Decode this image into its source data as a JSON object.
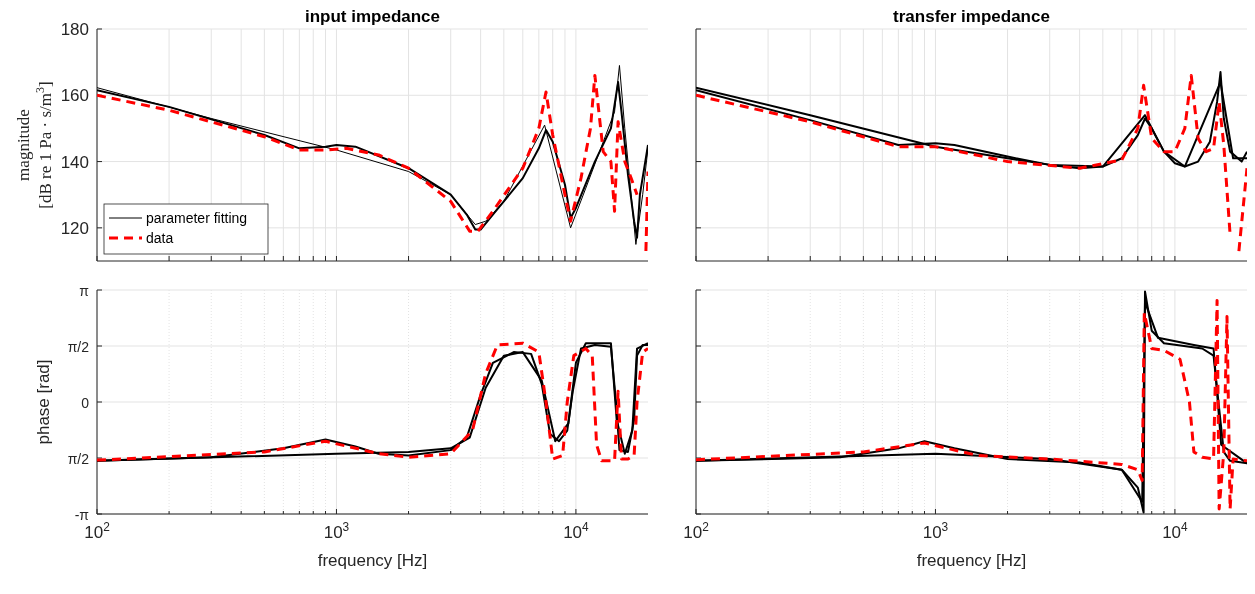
{
  "chart_data": [
    {
      "type": "line",
      "title": "input impedance",
      "ylabel": "magnitude\n[dB re 1 Pa · s/m$^{3}$]",
      "log": "x",
      "grid": true,
      "legend": "bottom left",
      "tick_labels": "y",
      "xlim": [
        100,
        20000
      ],
      "ylim": [
        110,
        180
      ],
      "xticks": [
        100,
        200,
        300,
        400,
        500,
        600,
        700,
        800,
        900,
        1000,
        2000,
        3000,
        4000,
        5000,
        6000,
        7000,
        8000,
        9000,
        10000
      ],
      "yticks": [
        120,
        140,
        160,
        180
      ],
      "series": [
        {
          "name": "parameter fitting",
          "color": "#000000",
          "line_style": "solid",
          "x": [
            100,
            300,
            1000,
            2000,
            3000,
            3800,
            4200,
            5000,
            7400,
            9500,
            11000,
            14500,
            15200,
            16000,
            17800,
            19000,
            20000
          ],
          "values": [
            162.3,
            153,
            143.5,
            137,
            130,
            121,
            122,
            128,
            151,
            120,
            132,
            155,
            169,
            150,
            115,
            130,
            144
          ]
        },
        {
          "color": "#000000",
          "line_style": "solid",
          "x": [
            100,
            200,
            500,
            700,
            900,
            1000,
            1200,
            2000,
            3000,
            3500,
            3800,
            4000,
            4500,
            5000,
            6000,
            7000,
            7500,
            8000,
            9000,
            9500,
            10000,
            12000,
            14000,
            15000,
            15500,
            16500,
            17500,
            18000,
            18500,
            20000
          ],
          "values": [
            161.5,
            156.5,
            148,
            144,
            144.5,
            145,
            144.5,
            138,
            130,
            124,
            119.5,
            119.5,
            124,
            128,
            135,
            144,
            149.5,
            146,
            133,
            123,
            126,
            140,
            150,
            164,
            155,
            136,
            122,
            117,
            130,
            145
          ]
        },
        {
          "name": "data",
          "color": "#ff0000",
          "line_style": "dashed",
          "x": [
            100,
            200,
            500,
            700,
            900,
            1100,
            1500,
            2000,
            3000,
            3600,
            3900,
            4500,
            6000,
            7000,
            7500,
            8000,
            9000,
            9500,
            10500,
            11500,
            12000,
            13000,
            14000,
            14500,
            15000,
            16000,
            17000,
            18000,
            18800,
            19600,
            20000
          ],
          "values": [
            160,
            155.5,
            147.5,
            143.5,
            143.5,
            144,
            142,
            138,
            128,
            119,
            119,
            125,
            138,
            150,
            161,
            148,
            130,
            122,
            135,
            150,
            166,
            143,
            140,
            125,
            152,
            140,
            135,
            130,
            null,
            113,
            137
          ]
        }
      ]
    },
    {
      "type": "line",
      "title": "transfer impedance",
      "log": "x",
      "grid": true,
      "tick_labels": false,
      "xlim": [
        100,
        20000
      ],
      "ylim": [
        110,
        180
      ],
      "xticks": [
        100,
        200,
        300,
        400,
        500,
        600,
        700,
        800,
        900,
        1000,
        2000,
        3000,
        4000,
        5000,
        6000,
        7000,
        8000,
        9000,
        10000
      ],
      "yticks": [
        120,
        140,
        160,
        180
      ],
      "series": [
        {
          "color": "#000000",
          "line_style": "solid",
          "x": [
            100,
            300,
            1000,
            2000,
            3000,
            5000,
            7500,
            9000,
            11000,
            15500,
            17500,
            20000
          ],
          "values": [
            162.3,
            154,
            144.5,
            141,
            139,
            138.5,
            154,
            143,
            138.5,
            164,
            141,
            141
          ]
        },
        {
          "color": "#000000",
          "line_style": "solid",
          "x": [
            100,
            300,
            700,
            1000,
            1200,
            2000,
            3000,
            4000,
            5000,
            6000,
            7000,
            7500,
            8000,
            9000,
            10000,
            11000,
            12500,
            14000,
            15000,
            15500,
            16000,
            17000,
            19000,
            20000
          ],
          "values": [
            161.5,
            152.5,
            145,
            145.5,
            145,
            141.5,
            139,
            138,
            138.5,
            141,
            148,
            153,
            150,
            143,
            139.5,
            138.5,
            140,
            146,
            158,
            167,
            153,
            143,
            140,
            143
          ]
        },
        {
          "color": "#ff0000",
          "line_style": "dashed",
          "x": [
            100,
            300,
            700,
            1000,
            2000,
            4000,
            6000,
            7000,
            7400,
            8000,
            9000,
            10000,
            11000,
            11700,
            12500,
            13500,
            14500,
            15300,
            16000,
            17000,
            17500,
            18500,
            20000
          ],
          "values": [
            160,
            152,
            144.5,
            144.5,
            140,
            138,
            140.5,
            150,
            163,
            147,
            143,
            143,
            150,
            166,
            147,
            143,
            144,
            158,
            145,
            118,
            null,
            113,
            138
          ]
        }
      ]
    },
    {
      "type": "line",
      "ylabel": "phase [rad]",
      "xlabel": "frequency [Hz]",
      "log": "x",
      "grid": true,
      "xlim": [
        100,
        20000
      ],
      "ylim": [
        -3.1416,
        3.1416
      ],
      "xticks": [
        {
          "value": 100,
          "label": "10$^{2}$"
        },
        {
          "value": 200,
          "label": null
        },
        {
          "value": 300,
          "label": null
        },
        {
          "value": 400,
          "label": null
        },
        {
          "value": 500,
          "label": null
        },
        {
          "value": 600,
          "label": null
        },
        {
          "value": 700,
          "label": null
        },
        {
          "value": 800,
          "label": null
        },
        {
          "value": 900,
          "label": null
        },
        {
          "value": 1000,
          "label": "10$^{3}$"
        },
        {
          "value": 2000,
          "label": null
        },
        {
          "value": 3000,
          "label": null
        },
        {
          "value": 4000,
          "label": null
        },
        {
          "value": 5000,
          "label": null
        },
        {
          "value": 6000,
          "label": null
        },
        {
          "value": 7000,
          "label": null
        },
        {
          "value": 8000,
          "label": null
        },
        {
          "value": 9000,
          "label": null
        },
        {
          "value": 10000,
          "label": "10$^{4}$"
        }
      ],
      "yticks": [
        {
          "value": -3.1416,
          "label": "-π"
        },
        {
          "value": -1.5708,
          "label": "π/2"
        },
        0,
        {
          "value": 1.5708,
          "label": "π/2"
        },
        {
          "value": 3.1416,
          "label": "π"
        }
      ],
      "series": [
        {
          "color": "#000000",
          "line_style": "solid",
          "x": [
            100,
            1000,
            2000,
            3000,
            3600,
            4200,
            5000,
            6000,
            7200,
            8200,
            9300,
            10000,
            11000,
            14000,
            14800,
            16000,
            17200,
            18000,
            20000
          ],
          "values": [
            -1.65,
            -1.45,
            -1.4,
            -1.3,
            -1.0,
            0.4,
            1.3,
            1.4,
            0.6,
            -1.1,
            -0.6,
            1.1,
            1.65,
            1.65,
            -0.5,
            -1.45,
            -0.8,
            1.5,
            1.65
          ]
        },
        {
          "color": "#000000",
          "line_style": "solid",
          "x": [
            100,
            300,
            600,
            900,
            1200,
            1500,
            2000,
            3000,
            3500,
            4000,
            4500,
            5500,
            6500,
            7200,
            7800,
            8500,
            9200,
            9700,
            10500,
            12000,
            14000,
            14700,
            15200,
            16500,
            17500,
            18000,
            19000,
            20000
          ],
          "values": [
            -1.65,
            -1.55,
            -1.3,
            -1.05,
            -1.25,
            -1.45,
            -1.5,
            -1.35,
            -1.0,
            0.2,
            1.1,
            1.4,
            1.35,
            0.5,
            -0.9,
            -1.1,
            -0.8,
            0.3,
            1.5,
            1.6,
            1.55,
            0,
            -1.35,
            -1.4,
            -0.5,
            1.3,
            1.6,
            1.6
          ]
        },
        {
          "color": "#ff0000",
          "line_style": "dashed",
          "x": [
            100,
            500,
            900,
            1500,
            2000,
            3000,
            3700,
            4200,
            4700,
            6000,
            7000,
            7500,
            8000,
            8800,
            9200,
            9800,
            11000,
            11700,
            12200,
            12800,
            14500,
            15000,
            15500,
            16500,
            17500,
            18000,
            19000,
            20000
          ],
          "values": [
            -1.63,
            -1.4,
            -1.1,
            -1.45,
            -1.55,
            -1.45,
            -0.8,
            0.8,
            1.6,
            1.65,
            1.4,
            0,
            -1.6,
            -1.5,
            0,
            1.3,
            1.5,
            1.3,
            -1.2,
            -1.65,
            -1.65,
            0.3,
            -1.6,
            -1.6,
            -1.5,
            0,
            1.4,
            1.5
          ]
        }
      ]
    },
    {
      "type": "line",
      "xlabel": "frequency [Hz]",
      "log": "x",
      "grid": true,
      "tick_labels": "x",
      "xlim": [
        100,
        20000
      ],
      "ylim": [
        -3.1416,
        3.1416
      ],
      "xticks": [
        {
          "value": 100,
          "label": "10$^{2}$"
        },
        {
          "value": 200,
          "label": null
        },
        {
          "value": 300,
          "label": null
        },
        {
          "value": 400,
          "label": null
        },
        {
          "value": 500,
          "label": null
        },
        {
          "value": 600,
          "label": null
        },
        {
          "value": 700,
          "label": null
        },
        {
          "value": 800,
          "label": null
        },
        {
          "value": 900,
          "label": null
        },
        {
          "value": 1000,
          "label": "10$^{3}$"
        },
        {
          "value": 2000,
          "label": null
        },
        {
          "value": 3000,
          "label": null
        },
        {
          "value": 4000,
          "label": null
        },
        {
          "value": 5000,
          "label": null
        },
        {
          "value": 6000,
          "label": null
        },
        {
          "value": 7000,
          "label": null
        },
        {
          "value": 8000,
          "label": null
        },
        {
          "value": 9000,
          "label": null
        },
        {
          "value": 10000,
          "label": "10$^{4}$"
        }
      ],
      "yticks": [
        -3.1416,
        -1.5708,
        0,
        1.5708,
        3.1416
      ],
      "series": [
        {
          "color": "#000000",
          "line_style": "solid",
          "x": [
            100,
            1000,
            3000,
            6000,
            7300,
            7500,
            8500,
            12000,
            14500,
            15600,
            20000
          ],
          "values": [
            -1.65,
            -1.45,
            -1.6,
            -1.9,
            -2.8,
            2.8,
            1.8,
            1.6,
            1.5,
            -1.2,
            -1.72
          ]
        },
        {
          "color": "#000000",
          "line_style": "solid",
          "x": [
            100,
            400,
            700,
            900,
            1200,
            2000,
            4000,
            6000,
            7000,
            7400,
            7500,
            8000,
            9000,
            13000,
            14500,
            15200,
            16000,
            17000,
            20000
          ],
          "values": [
            -1.65,
            -1.55,
            -1.3,
            -1.1,
            -1.3,
            -1.6,
            -1.7,
            -1.9,
            -2.4,
            -3.1,
            3.1,
            2.0,
            1.65,
            1.5,
            1.3,
            0,
            -1.4,
            -1.65,
            -1.72
          ]
        },
        {
          "color": "#ff0000",
          "line_style": "dashed",
          "x": [
            100,
            500,
            900,
            1500,
            3000,
            6000,
            7000,
            7300,
            7450,
            8000,
            9000,
            10500,
            11500,
            12000,
            13000,
            14500,
            15000,
            15300,
            16000,
            16500,
            17000,
            17500,
            20000
          ],
          "values": [
            -1.62,
            -1.4,
            -1.15,
            -1.5,
            -1.6,
            -1.75,
            -1.9,
            -2.2,
            2.5,
            1.5,
            1.45,
            1.2,
            0,
            -1.4,
            -1.55,
            -1.6,
            2.85,
            -3.0,
            -1.4,
            2.4,
            -3.0,
            -1.6,
            -1.65
          ]
        }
      ]
    }
  ]
}
